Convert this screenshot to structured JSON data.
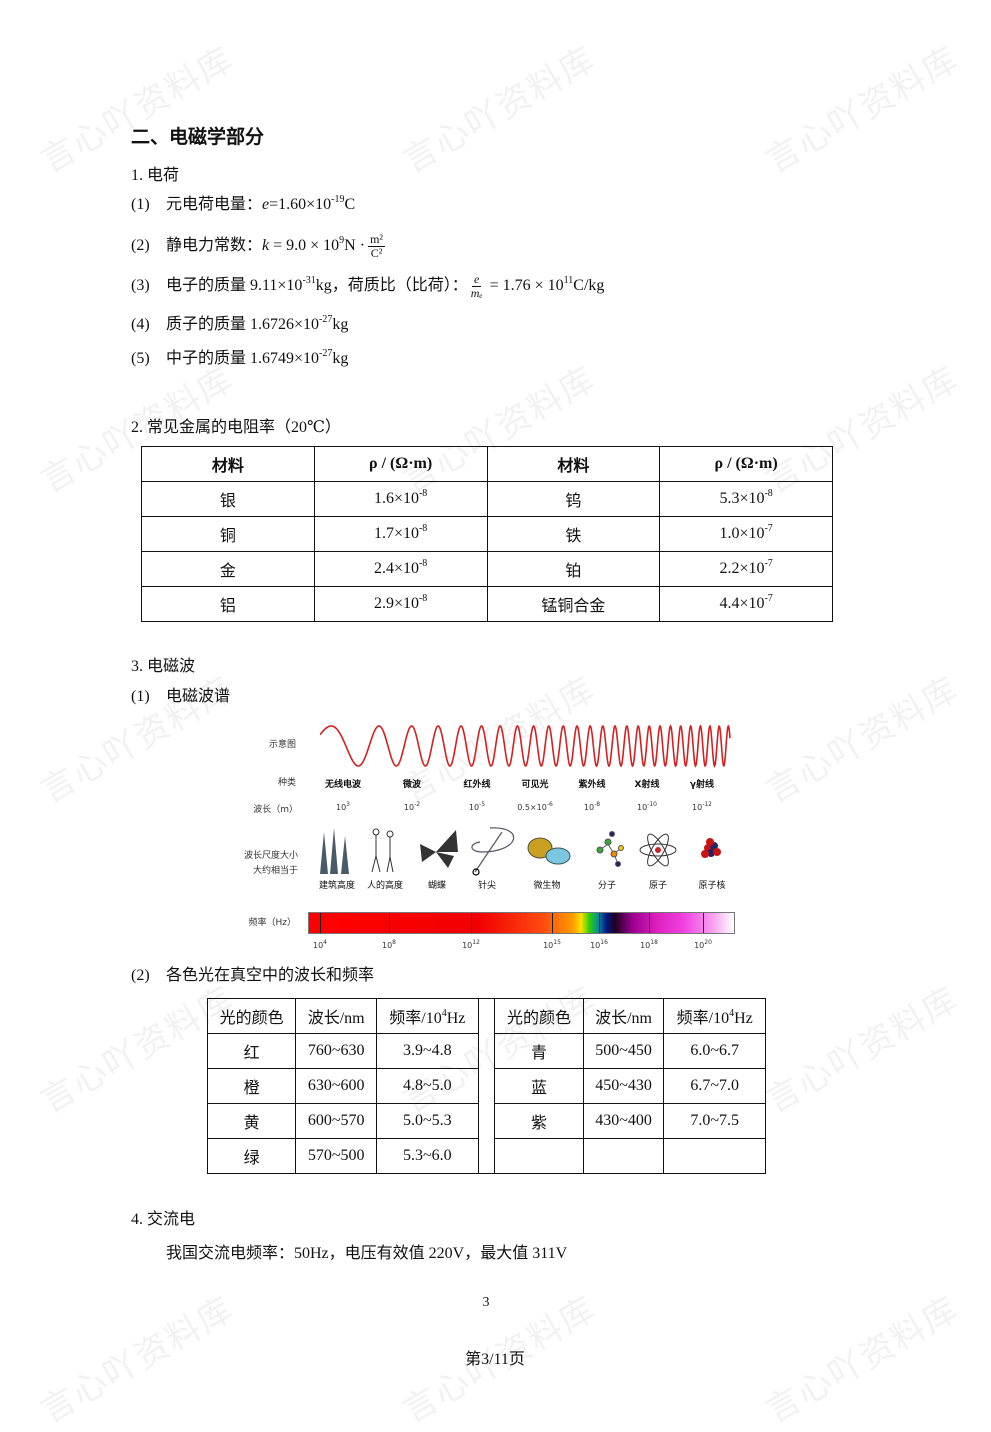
{
  "watermark": "言心吖资料库",
  "heading": "二、电磁学部分",
  "s1": {
    "title": "1. 电荷",
    "i1": {
      "num": "(1)",
      "a": "元电荷电量：",
      "v": "e",
      "b": "=1.60×10",
      "sup": "-19",
      "c": "C"
    },
    "i2": {
      "num": "(2)",
      "a": "静电力常数：",
      "v": "k",
      "b": " = 9.0 × 10",
      "sup": "9",
      "c": "N ·",
      "fn": "m²",
      "fd": "C²"
    },
    "i3": {
      "num": "(3)",
      "a": "电子的质量 9.11×10",
      "sup1": "-31",
      "b": "kg，荷质比（比荷）：",
      "fn": "e",
      "fd": "mₑ",
      "c": " = 1.76 × 10",
      "sup2": "11",
      "d": "C/kg"
    },
    "i4": {
      "num": "(4)",
      "a": "质子的质量 1.6726×10",
      "sup": "-27",
      "b": "kg"
    },
    "i5": {
      "num": "(5)",
      "a": "中子的质量 1.6749×10",
      "sup": "-27",
      "b": "kg"
    }
  },
  "s2": {
    "title": "2. 常见金属的电阻率（20℃）",
    "headers": [
      "材料",
      "ρ / (Ω·m)",
      "材料",
      "ρ / (Ω·m)"
    ],
    "rows": [
      [
        {
          "t": "银"
        },
        {
          "m": "1.6×10",
          "e": "-8"
        },
        {
          "t": "钨"
        },
        {
          "m": "5.3×10",
          "e": "-8"
        }
      ],
      [
        {
          "t": "铜"
        },
        {
          "m": "1.7×10",
          "e": "-8"
        },
        {
          "t": "铁"
        },
        {
          "m": "1.0×10",
          "e": "-7"
        }
      ],
      [
        {
          "t": "金"
        },
        {
          "m": "2.4×10",
          "e": "-8"
        },
        {
          "t": "铂"
        },
        {
          "m": "2.2×10",
          "e": "-7"
        }
      ],
      [
        {
          "t": "铝"
        },
        {
          "m": "2.9×10",
          "e": "-8"
        },
        {
          "t": "锰铜合金"
        },
        {
          "m": "4.4×10",
          "e": "-7"
        }
      ]
    ]
  },
  "s3": {
    "title": "3. 电磁波",
    "sub1": {
      "num": "(1)",
      "text": "电磁波谱"
    },
    "spectrum": {
      "row_labels": {
        "diagram": "示意图",
        "type": "种类",
        "wavelength": "波长（m）",
        "scale1": "波长尺度大小",
        "scale2": "大约相当于",
        "frequency": "频率（Hz）"
      },
      "types": [
        "无线电波",
        "微波",
        "红外线",
        "可见光",
        "紫外线",
        "X射线",
        "γ射线"
      ],
      "wavelengths": [
        {
          "m": "10",
          "e": "3"
        },
        {
          "m": "10",
          "e": "-2"
        },
        {
          "m": "10",
          "e": "-5"
        },
        {
          "m": "0.5×10",
          "e": "-6"
        },
        {
          "m": "10",
          "e": "-8"
        },
        {
          "m": "10",
          "e": "-10"
        },
        {
          "m": "10",
          "e": "-12"
        }
      ],
      "objects": [
        "建筑高度",
        "人的高度",
        "蝴蝶",
        "针尖",
        "微生物",
        "分子",
        "原子",
        "原子核"
      ],
      "freq_ticks": [
        {
          "m": "10",
          "e": "4"
        },
        {
          "m": "10",
          "e": "8"
        },
        {
          "m": "10",
          "e": "12"
        },
        {
          "m": "10",
          "e": "15"
        },
        {
          "m": "10",
          "e": "16"
        },
        {
          "m": "10",
          "e": "18"
        },
        {
          "m": "10",
          "e": "20"
        }
      ],
      "wave_color": "#d42020"
    },
    "sub2": {
      "num": "(2)",
      "text": "各色光在真空中的波长和频率"
    },
    "light_headers": [
      "光的颜色",
      "波长/nm",
      {
        "m": "频率/10",
        "e": "4",
        "s": "Hz"
      }
    ],
    "light_left": [
      [
        "红",
        "760~630",
        "3.9~4.8"
      ],
      [
        "橙",
        "630~600",
        "4.8~5.0"
      ],
      [
        "黄",
        "600~570",
        "5.0~5.3"
      ],
      [
        "绿",
        "570~500",
        "5.3~6.0"
      ]
    ],
    "light_right": [
      [
        "青",
        "500~450",
        "6.0~6.7"
      ],
      [
        "蓝",
        "450~430",
        "6.7~7.0"
      ],
      [
        "紫",
        "430~400",
        "7.0~7.5"
      ],
      [
        "",
        "",
        ""
      ]
    ]
  },
  "s4": {
    "title": "4. 交流电",
    "text": "我国交流电频率：50Hz，电压有效值 220V，最大值 311V"
  },
  "footer": {
    "page_num": "3",
    "page_of": "第3/11页"
  }
}
